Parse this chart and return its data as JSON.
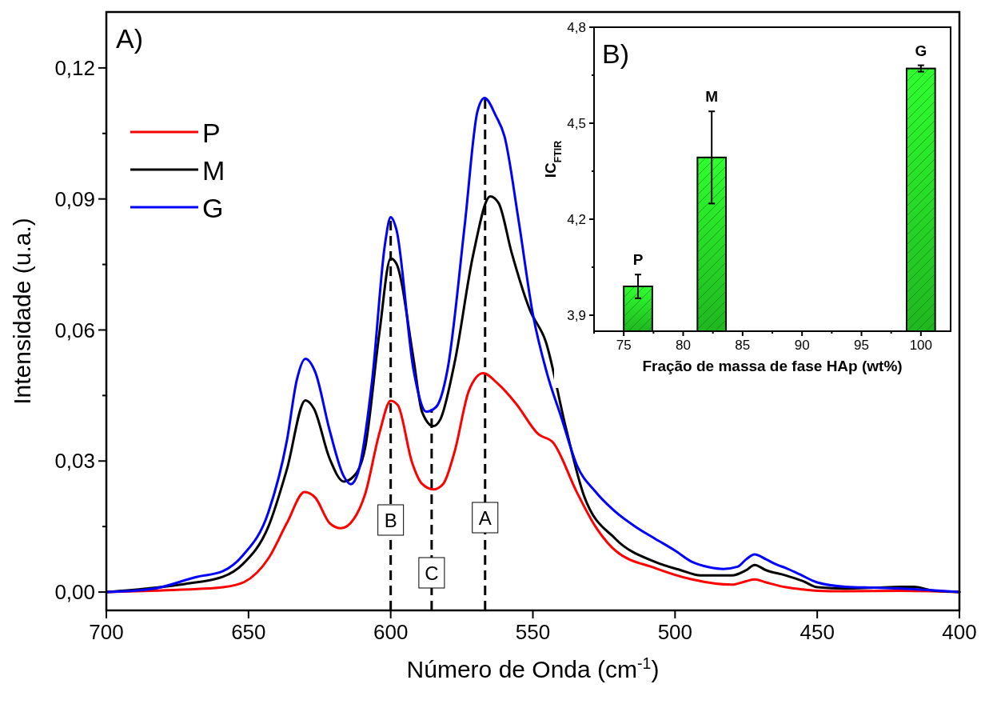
{
  "chart_data": [
    {
      "type": "line",
      "xlabel": "Número de Onda (cm$^{-1}$)",
      "ylabel": "Intensidade (u.a.)",
      "annotations": [
        "A)"
      ],
      "legend": "top left",
      "grid": false,
      "xlim": [
        700,
        400
      ],
      "xticks": [
        700,
        650,
        600,
        550,
        500,
        450,
        400
      ],
      "ylim": [
        -0.0042,
        0.1328
      ],
      "yticks": [
        {
          "value": 0,
          "label": "0,00"
        },
        {
          "value": 0.015,
          "label": null
        },
        {
          "value": 0.03,
          "label": "0,03"
        },
        {
          "value": 0.045,
          "label": null
        },
        {
          "value": 0.06,
          "label": "0,06"
        },
        {
          "value": 0.075,
          "label": null
        },
        {
          "value": 0.09,
          "label": "0,09"
        },
        {
          "value": 0.105,
          "label": null
        },
        {
          "value": 0.12,
          "label": "0,12"
        }
      ],
      "ref_lines": [
        {
          "axis": "x",
          "value": 600,
          "label": "B",
          "color": "#000000",
          "line_style": "dashed"
        },
        {
          "axis": "x",
          "value": 585.6,
          "label": "C",
          "color": "#000000",
          "line_style": "dashed"
        },
        {
          "axis": "x",
          "value": 566.8,
          "label": "A",
          "color": "#000000",
          "line_style": "dashed"
        }
      ],
      "series": [
        {
          "name": "P",
          "color": "#ff0000",
          "x": [
            700,
            684,
            668,
            659,
            651.5,
            643,
            636.5,
            630.3,
            626.5,
            621.5,
            617.5,
            613,
            609,
            604,
            600,
            597.5,
            592.5,
            589,
            585,
            581.5,
            577.5,
            572.5,
            567.5,
            562,
            556,
            548,
            543,
            534.5,
            528,
            521,
            507,
            494,
            480,
            475,
            472,
            468,
            461,
            455,
            450,
            440,
            420,
            410,
            400
          ],
          "values": [
            0,
            0.0003,
            0.0007,
            0.0011,
            0.0023,
            0.0077,
            0.0158,
            0.0229,
            0.0216,
            0.0158,
            0.0146,
            0.0167,
            0.0224,
            0.0363,
            0.0438,
            0.0428,
            0.0297,
            0.0248,
            0.0235,
            0.0248,
            0.0322,
            0.0461,
            0.0501,
            0.0475,
            0.0432,
            0.0361,
            0.0343,
            0.0228,
            0.015,
            0.0095,
            0.0055,
            0.0029,
            0.0017,
            0.0025,
            0.0029,
            0.0022,
            0.0011,
            0.0006,
            0.0003,
            0.0002,
            0.0003,
            0.0002,
            0
          ]
        },
        {
          "name": "M",
          "color": "#000000",
          "x": [
            700,
            686,
            672,
            659,
            652,
            643,
            636.5,
            630,
            627,
            621.5,
            616.5,
            613,
            609,
            604,
            600,
            598,
            592,
            589,
            585,
            582.5,
            577.5,
            571,
            565,
            562,
            557.5,
            551,
            545.5,
            538.5,
            532,
            521,
            507,
            498,
            491,
            480,
            475,
            472,
            468,
            461,
            455,
            450,
            440,
            430,
            420,
            416,
            410,
            400
          ],
          "values": [
            0,
            0.0008,
            0.0019,
            0.0035,
            0.0064,
            0.015,
            0.0281,
            0.0439,
            0.042,
            0.0306,
            0.0253,
            0.0265,
            0.033,
            0.0592,
            0.0764,
            0.0752,
            0.0535,
            0.0413,
            0.038,
            0.0396,
            0.0526,
            0.0772,
            0.0906,
            0.089,
            0.0778,
            0.0645,
            0.0574,
            0.0379,
            0.022,
            0.0122,
            0.0069,
            0.005,
            0.0038,
            0.0038,
            0.005,
            0.0062,
            0.005,
            0.0038,
            0.0025,
            0.0011,
            0.0008,
            0.001,
            0.0012,
            0.0012,
            0.0004,
            0
          ]
        },
        {
          "name": "G",
          "color": "#0000ff",
          "x": [
            700,
            684,
            668,
            659,
            652,
            643,
            636.5,
            633,
            630,
            626.5,
            621.5,
            616.5,
            614,
            611.5,
            606.5,
            602,
            600,
            598,
            592,
            587.5,
            584,
            580,
            574,
            569.5,
            567,
            563,
            560,
            555,
            550,
            545,
            540,
            534.5,
            528,
            521,
            514,
            507,
            500,
            494,
            488,
            483,
            478,
            475,
            472,
            468,
            464,
            461,
            456,
            450,
            440,
            430,
            420,
            412,
            400
          ],
          "values": [
            0,
            0.0007,
            0.0035,
            0.0048,
            0.0084,
            0.0183,
            0.0347,
            0.0486,
            0.0534,
            0.0503,
            0.0371,
            0.0265,
            0.0247,
            0.0273,
            0.0486,
            0.0797,
            0.0858,
            0.083,
            0.051,
            0.0413,
            0.0424,
            0.051,
            0.0838,
            0.11,
            0.1131,
            0.109,
            0.1044,
            0.085,
            0.0636,
            0.05,
            0.04,
            0.029,
            0.023,
            0.0184,
            0.015,
            0.0122,
            0.0095,
            0.0069,
            0.0057,
            0.0053,
            0.0058,
            0.0075,
            0.0086,
            0.0075,
            0.0062,
            0.0055,
            0.004,
            0.0022,
            0.0012,
            0.001,
            0.0008,
            0.0005,
            0
          ]
        }
      ]
    },
    {
      "type": "bar",
      "xlabel": "Fração de massa de fase HAp (wt%)",
      "ylabel": "IC$_{FTIR}$",
      "color": "#22cc22",
      "x": [
        76.2,
        82.4,
        100
      ],
      "values": [
        3.99,
        4.393,
        4.671
      ],
      "errors": [
        0.037,
        0.144,
        0.01
      ],
      "annotations": [
        "B)",
        "P",
        "M",
        "G"
      ],
      "xlim": [
        72.5,
        102.5
      ],
      "xticks": [
        {
          "value": 72.5,
          "label": null
        },
        75,
        {
          "value": 77.5,
          "label": null
        },
        80,
        {
          "value": 82.5,
          "label": null
        },
        85,
        {
          "value": 87.5,
          "label": null
        },
        90,
        {
          "value": 92.5,
          "label": null
        },
        95,
        {
          "value": 97.5,
          "label": null
        },
        100
      ],
      "ylim": [
        3.85,
        4.8
      ],
      "yticks": [
        {
          "value": 3.9,
          "label": "3,9"
        },
        {
          "value": 4.05,
          "label": null
        },
        {
          "value": 4.2,
          "label": "4,2"
        },
        {
          "value": 4.35,
          "label": null
        },
        {
          "value": 4.5,
          "label": "4,5"
        },
        {
          "value": 4.65,
          "label": null
        },
        {
          "value": 4.8,
          "label": "4,8"
        }
      ]
    }
  ]
}
